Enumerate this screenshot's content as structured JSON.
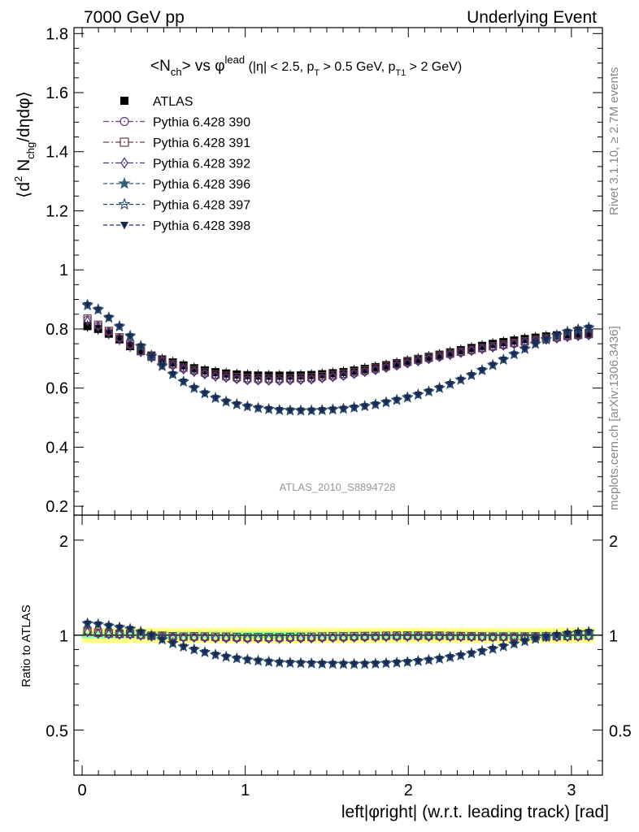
{
  "header": {
    "left": "7000 GeV pp",
    "right": "Underlying Event",
    "rivet": "Rivet 3.1.10, ≥ 2.7M events",
    "mcplots": "mcplots.cern.ch [arXiv:1306.3436]"
  },
  "colors": {
    "atlas": "#000000",
    "p390": "#6f3b7a",
    "p391": "#6e3a4c",
    "p392": "#46307a",
    "p396": "#35607a",
    "p397": "#23486a",
    "p398": "#1b2a55",
    "band_inner": "#9aff9a",
    "band_outer": "#ffff80"
  },
  "chart_data": [
    {
      "type": "scatter",
      "title": "<Nch> vs φlead (|η| < 2.5, pT > 0.5 GeV, pT1 > 2 GeV)",
      "title_parts": {
        "n": "<N",
        "ch": "ch",
        "vs": "> vs φ",
        "lead": "lead",
        "cut1": " (|η| < 2.5, p",
        "t": "T",
        "cut2": " > 0.5 GeV, p",
        "t1": "T1",
        "cut3": " > 2 GeV)"
      },
      "ylabel": "⟨d² Nᶜʰᵍ/dηdφ⟩",
      "ylabel_parts": {
        "a": "⟨d",
        "sq": "2",
        "b": " N",
        "chg": "chg",
        "c": "/dηdφ⟩"
      },
      "xlim": [
        -0.05,
        3.19
      ],
      "ylim": [
        0.17,
        1.82
      ],
      "yticks": [
        "0.2",
        "0.4",
        "0.6",
        "0.8",
        "1",
        "1.2",
        "1.4",
        "1.6",
        "1.8"
      ],
      "ytick_values": [
        0.2,
        0.4,
        0.6,
        0.8,
        1.0,
        1.2,
        1.4,
        1.6,
        1.8
      ],
      "watermark": "ATLAS_2010_S8894728",
      "legend_position": "top-left",
      "x_points": {
        "start": 0.0327,
        "step": 0.0654,
        "count": 48
      },
      "series": [
        {
          "name": "ATLAS",
          "marker": "square-filled",
          "style": "none",
          "y_anchors": [
            [
              0.03,
              0.81
            ],
            [
              0.1,
              0.8
            ],
            [
              0.2,
              0.775
            ],
            [
              0.3,
              0.74
            ],
            [
              0.4,
              0.715
            ],
            [
              0.5,
              0.695
            ],
            [
              0.6,
              0.68
            ],
            [
              0.7,
              0.665
            ],
            [
              0.8,
              0.655
            ],
            [
              0.9,
              0.648
            ],
            [
              1.0,
              0.644
            ],
            [
              1.1,
              0.642
            ],
            [
              1.2,
              0.642
            ],
            [
              1.3,
              0.642
            ],
            [
              1.4,
              0.644
            ],
            [
              1.5,
              0.648
            ],
            [
              1.6,
              0.654
            ],
            [
              1.7,
              0.662
            ],
            [
              1.8,
              0.671
            ],
            [
              1.9,
              0.681
            ],
            [
              2.0,
              0.692
            ],
            [
              2.1,
              0.703
            ],
            [
              2.2,
              0.714
            ],
            [
              2.3,
              0.726
            ],
            [
              2.4,
              0.737
            ],
            [
              2.5,
              0.748
            ],
            [
              2.6,
              0.757
            ],
            [
              2.7,
              0.765
            ],
            [
              2.8,
              0.772
            ],
            [
              2.9,
              0.778
            ],
            [
              3.0,
              0.783
            ],
            [
              3.11,
              0.786
            ]
          ]
        },
        {
          "name": "Pythia 6.428 390",
          "marker": "circle-open",
          "style": "dashdot",
          "y_anchors": [
            [
              0.03,
              0.832
            ],
            [
              0.2,
              0.78
            ],
            [
              0.4,
              0.71
            ],
            [
              0.6,
              0.668
            ],
            [
              0.8,
              0.642
            ],
            [
              1.0,
              0.628
            ],
            [
              1.2,
              0.626
            ],
            [
              1.4,
              0.63
            ],
            [
              1.6,
              0.642
            ],
            [
              1.8,
              0.662
            ],
            [
              2.0,
              0.685
            ],
            [
              2.2,
              0.707
            ],
            [
              2.4,
              0.728
            ],
            [
              2.6,
              0.746
            ],
            [
              2.8,
              0.762
            ],
            [
              3.0,
              0.775
            ],
            [
              3.11,
              0.78
            ]
          ]
        },
        {
          "name": "Pythia 6.428 391",
          "marker": "square-open",
          "style": "dashdot",
          "y_anchors": [
            [
              0.03,
              0.836
            ],
            [
              0.2,
              0.782
            ],
            [
              0.4,
              0.712
            ],
            [
              0.6,
              0.672
            ],
            [
              0.8,
              0.647
            ],
            [
              1.0,
              0.634
            ],
            [
              1.2,
              0.632
            ],
            [
              1.4,
              0.636
            ],
            [
              1.6,
              0.648
            ],
            [
              1.8,
              0.667
            ],
            [
              2.0,
              0.69
            ],
            [
              2.2,
              0.711
            ],
            [
              2.4,
              0.731
            ],
            [
              2.6,
              0.749
            ],
            [
              2.8,
              0.765
            ],
            [
              3.0,
              0.778
            ],
            [
              3.11,
              0.783
            ]
          ]
        },
        {
          "name": "Pythia 6.428 392",
          "marker": "diamond-open",
          "style": "dashdot",
          "y_anchors": [
            [
              0.03,
              0.828
            ],
            [
              0.2,
              0.778
            ],
            [
              0.4,
              0.708
            ],
            [
              0.6,
              0.666
            ],
            [
              0.8,
              0.64
            ],
            [
              1.0,
              0.627
            ],
            [
              1.2,
              0.625
            ],
            [
              1.4,
              0.629
            ],
            [
              1.6,
              0.641
            ],
            [
              1.8,
              0.661
            ],
            [
              2.0,
              0.684
            ],
            [
              2.2,
              0.706
            ],
            [
              2.4,
              0.727
            ],
            [
              2.6,
              0.745
            ],
            [
              2.8,
              0.761
            ],
            [
              3.0,
              0.774
            ],
            [
              3.11,
              0.779
            ]
          ]
        },
        {
          "name": "Pythia 6.428 396",
          "marker": "star-filled",
          "style": "dashed",
          "y_anchors": [
            [
              0.03,
              0.884
            ],
            [
              0.1,
              0.867
            ],
            [
              0.2,
              0.825
            ],
            [
              0.3,
              0.775
            ],
            [
              0.4,
              0.722
            ],
            [
              0.5,
              0.672
            ],
            [
              0.6,
              0.63
            ],
            [
              0.7,
              0.597
            ],
            [
              0.8,
              0.571
            ],
            [
              0.9,
              0.552
            ],
            [
              1.0,
              0.54
            ],
            [
              1.1,
              0.532
            ],
            [
              1.2,
              0.527
            ],
            [
              1.3,
              0.525
            ],
            [
              1.4,
              0.525
            ],
            [
              1.5,
              0.527
            ],
            [
              1.6,
              0.531
            ],
            [
              1.7,
              0.537
            ],
            [
              1.8,
              0.546
            ],
            [
              1.9,
              0.557
            ],
            [
              2.0,
              0.57
            ],
            [
              2.1,
              0.585
            ],
            [
              2.2,
              0.603
            ],
            [
              2.3,
              0.624
            ],
            [
              2.4,
              0.648
            ],
            [
              2.5,
              0.674
            ],
            [
              2.6,
              0.702
            ],
            [
              2.7,
              0.73
            ],
            [
              2.8,
              0.756
            ],
            [
              2.9,
              0.778
            ],
            [
              3.0,
              0.796
            ],
            [
              3.11,
              0.806
            ]
          ]
        },
        {
          "name": "Pythia 6.428 397",
          "marker": "star-open",
          "style": "dashed",
          "y_anchors": [
            [
              0.03,
              0.88
            ],
            [
              0.1,
              0.864
            ],
            [
              0.2,
              0.822
            ],
            [
              0.3,
              0.772
            ],
            [
              0.4,
              0.719
            ],
            [
              0.5,
              0.669
            ],
            [
              0.6,
              0.628
            ],
            [
              0.7,
              0.595
            ],
            [
              0.8,
              0.569
            ],
            [
              0.9,
              0.55
            ],
            [
              1.0,
              0.538
            ],
            [
              1.1,
              0.53
            ],
            [
              1.2,
              0.525
            ],
            [
              1.3,
              0.523
            ],
            [
              1.4,
              0.523
            ],
            [
              1.5,
              0.525
            ],
            [
              1.6,
              0.529
            ],
            [
              1.7,
              0.535
            ],
            [
              1.8,
              0.544
            ],
            [
              1.9,
              0.555
            ],
            [
              2.0,
              0.568
            ],
            [
              2.1,
              0.583
            ],
            [
              2.2,
              0.601
            ],
            [
              2.3,
              0.622
            ],
            [
              2.4,
              0.646
            ],
            [
              2.5,
              0.672
            ],
            [
              2.6,
              0.7
            ],
            [
              2.7,
              0.728
            ],
            [
              2.8,
              0.754
            ],
            [
              2.9,
              0.776
            ],
            [
              3.0,
              0.794
            ],
            [
              3.11,
              0.803
            ]
          ]
        },
        {
          "name": "Pythia 6.428 398",
          "marker": "triangle-down-filled",
          "style": "dashed",
          "y_anchors": [
            [
              0.03,
              0.882
            ],
            [
              0.1,
              0.865
            ],
            [
              0.2,
              0.823
            ],
            [
              0.3,
              0.773
            ],
            [
              0.4,
              0.72
            ],
            [
              0.5,
              0.67
            ],
            [
              0.6,
              0.629
            ],
            [
              0.7,
              0.596
            ],
            [
              0.8,
              0.57
            ],
            [
              0.9,
              0.551
            ],
            [
              1.0,
              0.539
            ],
            [
              1.1,
              0.531
            ],
            [
              1.2,
              0.526
            ],
            [
              1.3,
              0.524
            ],
            [
              1.4,
              0.524
            ],
            [
              1.5,
              0.526
            ],
            [
              1.6,
              0.53
            ],
            [
              1.7,
              0.536
            ],
            [
              1.8,
              0.545
            ],
            [
              1.9,
              0.556
            ],
            [
              2.0,
              0.569
            ],
            [
              2.1,
              0.584
            ],
            [
              2.2,
              0.602
            ],
            [
              2.3,
              0.623
            ],
            [
              2.4,
              0.647
            ],
            [
              2.5,
              0.673
            ],
            [
              2.6,
              0.701
            ],
            [
              2.7,
              0.729
            ],
            [
              2.8,
              0.755
            ],
            [
              2.9,
              0.777
            ],
            [
              3.0,
              0.795
            ],
            [
              3.11,
              0.805
            ]
          ]
        }
      ]
    },
    {
      "type": "scatter",
      "ylabel": "Ratio to ATLAS",
      "xlabel": "left|φright| (w.r.t. leading track) [rad]",
      "xlim": [
        -0.05,
        3.19
      ],
      "ylim": [
        0.36,
        2.4
      ],
      "log_y": true,
      "xticks": [
        "0",
        "1",
        "2",
        "3"
      ],
      "xtick_values": [
        0,
        1,
        2,
        3
      ],
      "yticks": [
        "0.5",
        "1",
        "2"
      ],
      "ytick_values": [
        0.5,
        1,
        2
      ],
      "reference": 1.0,
      "band": {
        "inner": 0.025,
        "outer": 0.055
      }
    }
  ]
}
